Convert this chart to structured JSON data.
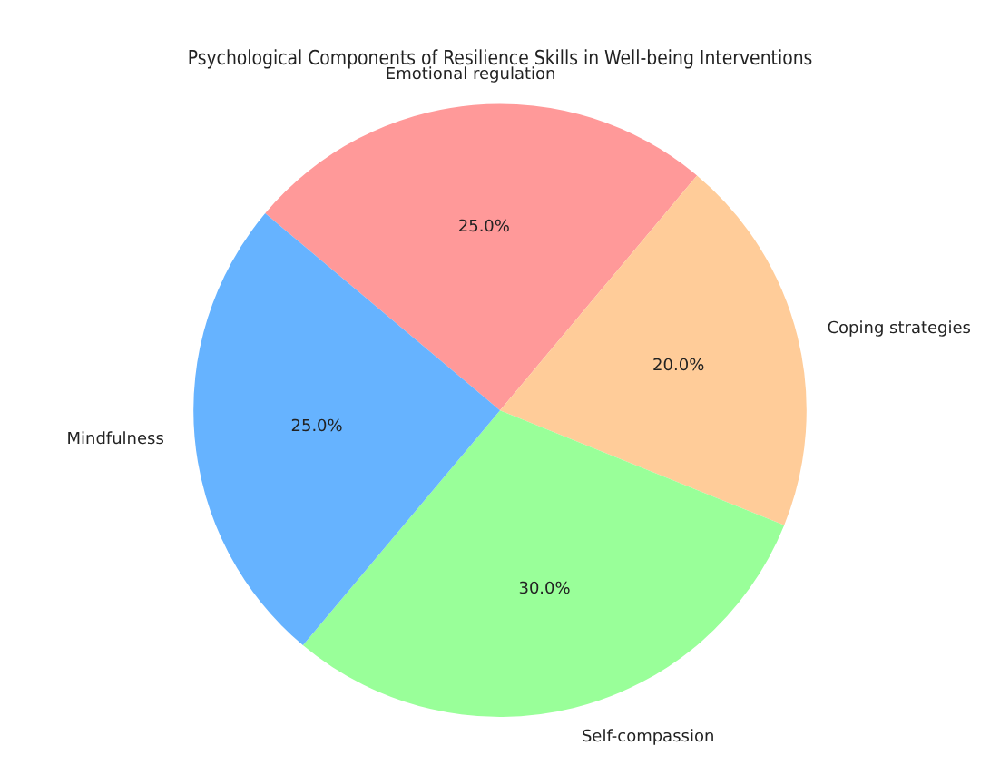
{
  "chart_data": {
    "type": "pie",
    "title": "Psychological Components of Resilience Skills in Well-being Interventions",
    "categories": [
      "Emotional regulation",
      "Coping strategies",
      "Self-compassion",
      "Mindfulness"
    ],
    "values": [
      25,
      20,
      30,
      25
    ],
    "colors": [
      "#ff9999",
      "#ffcc99",
      "#99ff99",
      "#66b3ff"
    ],
    "value_labels": [
      "25.0%",
      "20.0%",
      "30.0%",
      "25.0%"
    ],
    "legend": false
  }
}
